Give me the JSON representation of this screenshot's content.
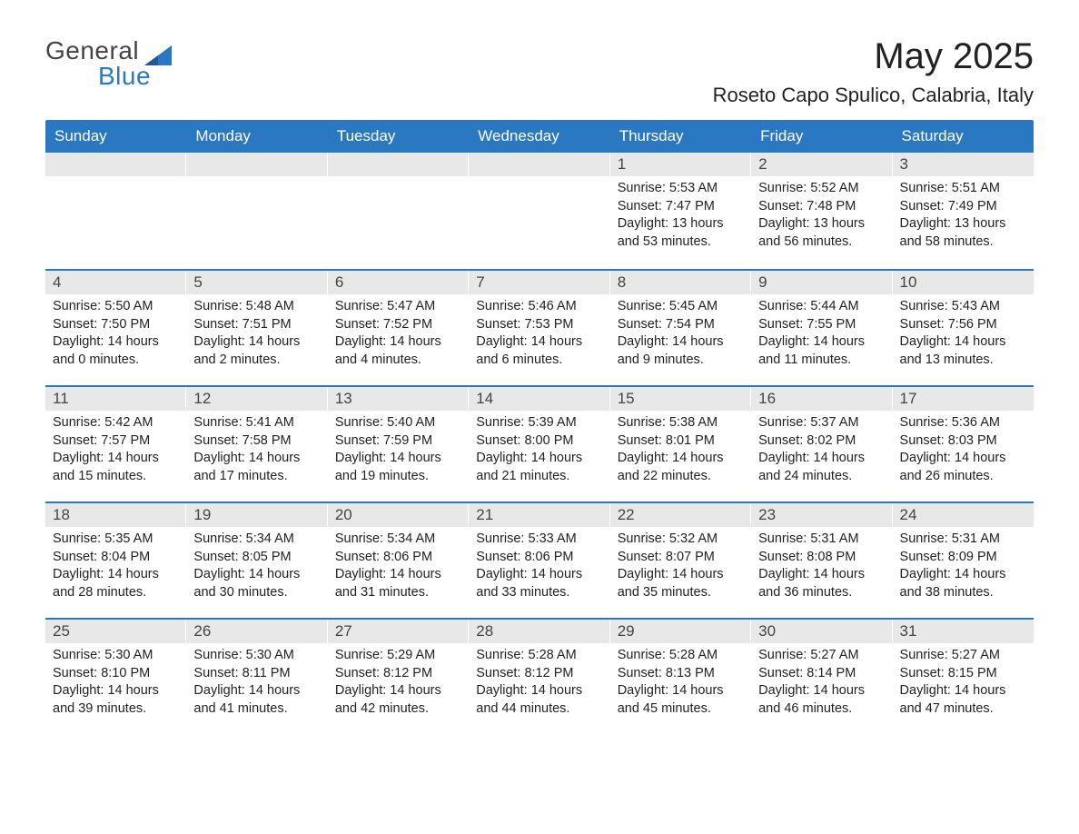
{
  "brand": {
    "word1": "General",
    "word2": "Blue",
    "text_color_primary": "#444444",
    "text_color_accent": "#2b78c2",
    "icon_color": "#2b78c2"
  },
  "header": {
    "title": "May 2025",
    "location": "Roseto Capo Spulico, Calabria, Italy"
  },
  "calendar": {
    "type": "table",
    "header_bg": "#2b78c2",
    "header_text_color": "#ffffff",
    "row_divider_color": "#2b78c2",
    "daynum_bg": "#e8e8e8",
    "background_color": "#ffffff",
    "body_font_size_pt": 11,
    "header_font_size_pt": 13,
    "weekdays": [
      "Sunday",
      "Monday",
      "Tuesday",
      "Wednesday",
      "Thursday",
      "Friday",
      "Saturday"
    ],
    "weeks": [
      [
        null,
        null,
        null,
        null,
        {
          "n": "1",
          "sunrise": "Sunrise: 5:53 AM",
          "sunset": "Sunset: 7:47 PM",
          "daylight": "Daylight: 13 hours and 53 minutes."
        },
        {
          "n": "2",
          "sunrise": "Sunrise: 5:52 AM",
          "sunset": "Sunset: 7:48 PM",
          "daylight": "Daylight: 13 hours and 56 minutes."
        },
        {
          "n": "3",
          "sunrise": "Sunrise: 5:51 AM",
          "sunset": "Sunset: 7:49 PM",
          "daylight": "Daylight: 13 hours and 58 minutes."
        }
      ],
      [
        {
          "n": "4",
          "sunrise": "Sunrise: 5:50 AM",
          "sunset": "Sunset: 7:50 PM",
          "daylight": "Daylight: 14 hours and 0 minutes."
        },
        {
          "n": "5",
          "sunrise": "Sunrise: 5:48 AM",
          "sunset": "Sunset: 7:51 PM",
          "daylight": "Daylight: 14 hours and 2 minutes."
        },
        {
          "n": "6",
          "sunrise": "Sunrise: 5:47 AM",
          "sunset": "Sunset: 7:52 PM",
          "daylight": "Daylight: 14 hours and 4 minutes."
        },
        {
          "n": "7",
          "sunrise": "Sunrise: 5:46 AM",
          "sunset": "Sunset: 7:53 PM",
          "daylight": "Daylight: 14 hours and 6 minutes."
        },
        {
          "n": "8",
          "sunrise": "Sunrise: 5:45 AM",
          "sunset": "Sunset: 7:54 PM",
          "daylight": "Daylight: 14 hours and 9 minutes."
        },
        {
          "n": "9",
          "sunrise": "Sunrise: 5:44 AM",
          "sunset": "Sunset: 7:55 PM",
          "daylight": "Daylight: 14 hours and 11 minutes."
        },
        {
          "n": "10",
          "sunrise": "Sunrise: 5:43 AM",
          "sunset": "Sunset: 7:56 PM",
          "daylight": "Daylight: 14 hours and 13 minutes."
        }
      ],
      [
        {
          "n": "11",
          "sunrise": "Sunrise: 5:42 AM",
          "sunset": "Sunset: 7:57 PM",
          "daylight": "Daylight: 14 hours and 15 minutes."
        },
        {
          "n": "12",
          "sunrise": "Sunrise: 5:41 AM",
          "sunset": "Sunset: 7:58 PM",
          "daylight": "Daylight: 14 hours and 17 minutes."
        },
        {
          "n": "13",
          "sunrise": "Sunrise: 5:40 AM",
          "sunset": "Sunset: 7:59 PM",
          "daylight": "Daylight: 14 hours and 19 minutes."
        },
        {
          "n": "14",
          "sunrise": "Sunrise: 5:39 AM",
          "sunset": "Sunset: 8:00 PM",
          "daylight": "Daylight: 14 hours and 21 minutes."
        },
        {
          "n": "15",
          "sunrise": "Sunrise: 5:38 AM",
          "sunset": "Sunset: 8:01 PM",
          "daylight": "Daylight: 14 hours and 22 minutes."
        },
        {
          "n": "16",
          "sunrise": "Sunrise: 5:37 AM",
          "sunset": "Sunset: 8:02 PM",
          "daylight": "Daylight: 14 hours and 24 minutes."
        },
        {
          "n": "17",
          "sunrise": "Sunrise: 5:36 AM",
          "sunset": "Sunset: 8:03 PM",
          "daylight": "Daylight: 14 hours and 26 minutes."
        }
      ],
      [
        {
          "n": "18",
          "sunrise": "Sunrise: 5:35 AM",
          "sunset": "Sunset: 8:04 PM",
          "daylight": "Daylight: 14 hours and 28 minutes."
        },
        {
          "n": "19",
          "sunrise": "Sunrise: 5:34 AM",
          "sunset": "Sunset: 8:05 PM",
          "daylight": "Daylight: 14 hours and 30 minutes."
        },
        {
          "n": "20",
          "sunrise": "Sunrise: 5:34 AM",
          "sunset": "Sunset: 8:06 PM",
          "daylight": "Daylight: 14 hours and 31 minutes."
        },
        {
          "n": "21",
          "sunrise": "Sunrise: 5:33 AM",
          "sunset": "Sunset: 8:06 PM",
          "daylight": "Daylight: 14 hours and 33 minutes."
        },
        {
          "n": "22",
          "sunrise": "Sunrise: 5:32 AM",
          "sunset": "Sunset: 8:07 PM",
          "daylight": "Daylight: 14 hours and 35 minutes."
        },
        {
          "n": "23",
          "sunrise": "Sunrise: 5:31 AM",
          "sunset": "Sunset: 8:08 PM",
          "daylight": "Daylight: 14 hours and 36 minutes."
        },
        {
          "n": "24",
          "sunrise": "Sunrise: 5:31 AM",
          "sunset": "Sunset: 8:09 PM",
          "daylight": "Daylight: 14 hours and 38 minutes."
        }
      ],
      [
        {
          "n": "25",
          "sunrise": "Sunrise: 5:30 AM",
          "sunset": "Sunset: 8:10 PM",
          "daylight": "Daylight: 14 hours and 39 minutes."
        },
        {
          "n": "26",
          "sunrise": "Sunrise: 5:30 AM",
          "sunset": "Sunset: 8:11 PM",
          "daylight": "Daylight: 14 hours and 41 minutes."
        },
        {
          "n": "27",
          "sunrise": "Sunrise: 5:29 AM",
          "sunset": "Sunset: 8:12 PM",
          "daylight": "Daylight: 14 hours and 42 minutes."
        },
        {
          "n": "28",
          "sunrise": "Sunrise: 5:28 AM",
          "sunset": "Sunset: 8:12 PM",
          "daylight": "Daylight: 14 hours and 44 minutes."
        },
        {
          "n": "29",
          "sunrise": "Sunrise: 5:28 AM",
          "sunset": "Sunset: 8:13 PM",
          "daylight": "Daylight: 14 hours and 45 minutes."
        },
        {
          "n": "30",
          "sunrise": "Sunrise: 5:27 AM",
          "sunset": "Sunset: 8:14 PM",
          "daylight": "Daylight: 14 hours and 46 minutes."
        },
        {
          "n": "31",
          "sunrise": "Sunrise: 5:27 AM",
          "sunset": "Sunset: 8:15 PM",
          "daylight": "Daylight: 14 hours and 47 minutes."
        }
      ]
    ]
  }
}
